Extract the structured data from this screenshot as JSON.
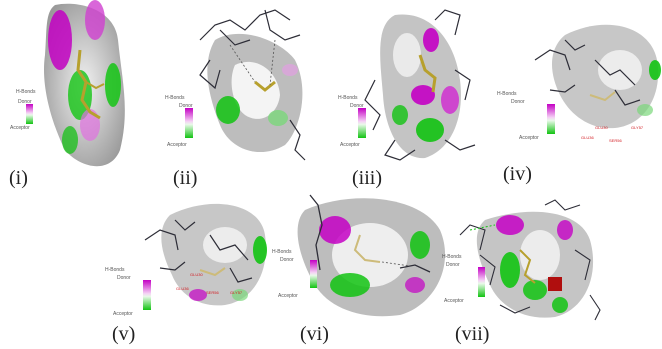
{
  "panels": [
    {
      "numeral": "(i)",
      "legend": {
        "title": "H-Bonds",
        "donor": "Donor",
        "acceptor": "Acceptor"
      }
    },
    {
      "numeral": "(ii)",
      "legend": {
        "title": "H-Bonds",
        "donor": "Donor",
        "acceptor": "Acceptor"
      }
    },
    {
      "numeral": "(iii)",
      "legend": {
        "title": "H-Bonds",
        "donor": "Donor",
        "acceptor": "Acceptor"
      }
    },
    {
      "numeral": "(iv)",
      "legend": {
        "title": "H-Bonds",
        "donor": "Donor",
        "acceptor": "Acceptor"
      }
    },
    {
      "numeral": "(v)",
      "legend": {
        "title": "H-Bonds",
        "donor": "Donor",
        "acceptor": "Acceptor"
      }
    },
    {
      "numeral": "(vi)",
      "legend": {
        "title": "H-Bonds",
        "donor": "Donor",
        "acceptor": "Acceptor"
      }
    },
    {
      "numeral": "(vii)",
      "legend": {
        "title": "H-Bonds",
        "donor": "Donor",
        "acceptor": "Acceptor"
      }
    }
  ],
  "residue_labels": {
    "iv": [
      "GLU30",
      "GLU36",
      "SER56",
      "GLY57"
    ],
    "v": [
      "GLU30",
      "GLU36",
      "SER56",
      "GLY57"
    ]
  },
  "colors": {
    "donor": "#c400c4",
    "acceptor": "#12c312",
    "surface": "#c8c8c8",
    "ligand": "#b7a02d",
    "residue": "#2d2d37",
    "label": "#d2191f"
  }
}
